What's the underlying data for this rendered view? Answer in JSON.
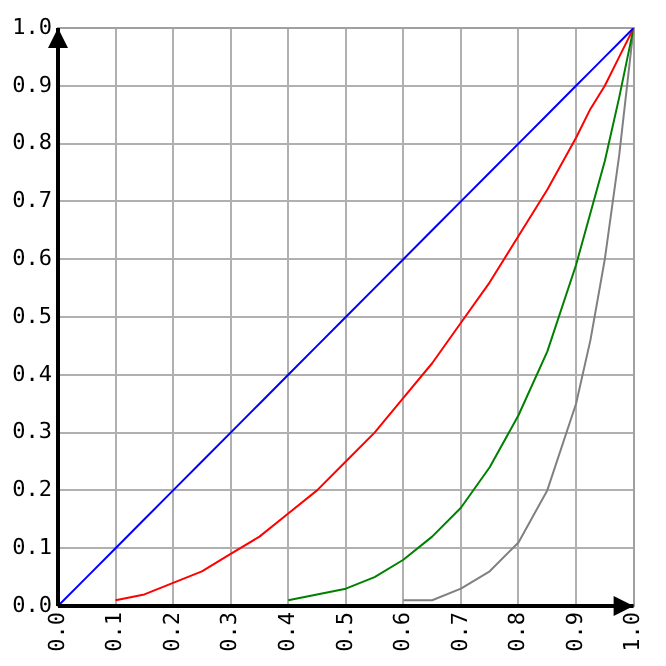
{
  "chart_data": {
    "type": "line",
    "x": [
      0,
      0.05,
      0.1,
      0.15,
      0.2,
      0.25,
      0.3,
      0.35,
      0.4,
      0.45,
      0.5,
      0.55,
      0.6,
      0.65,
      0.7,
      0.75,
      0.8,
      0.85,
      0.9,
      0.925,
      0.95,
      0.975,
      1
    ],
    "series": [
      {
        "color": "#0000ff",
        "values": [
          0,
          0.05,
          0.1,
          0.15,
          0.2,
          0.25,
          0.3,
          0.35,
          0.4,
          0.45,
          0.5,
          0.55,
          0.6,
          0.65,
          0.7,
          0.75,
          0.8,
          0.85,
          0.9,
          0.925,
          0.95,
          0.975,
          1
        ]
      },
      {
        "color": "#ff0000",
        "values": [
          null,
          null,
          0.01,
          0.02,
          0.04,
          0.06,
          0.09,
          0.12,
          0.16,
          0.2,
          0.25,
          0.3,
          0.36,
          0.42,
          0.49,
          0.56,
          0.64,
          0.72,
          0.81,
          0.86,
          0.9,
          0.95,
          1
        ]
      },
      {
        "color": "#008000",
        "values": [
          null,
          null,
          null,
          null,
          null,
          null,
          null,
          null,
          0.01,
          0.02,
          0.03,
          0.05,
          0.08,
          0.12,
          0.17,
          0.24,
          0.33,
          0.44,
          0.59,
          0.68,
          0.77,
          0.88,
          1
        ]
      },
      {
        "color": "#808080",
        "values": [
          null,
          null,
          null,
          null,
          null,
          null,
          null,
          null,
          null,
          null,
          null,
          null,
          0.01,
          0.01,
          0.03,
          0.06,
          0.11,
          0.2,
          0.35,
          0.46,
          0.6,
          0.78,
          1
        ]
      }
    ],
    "xlim": [
      0,
      1
    ],
    "ylim": [
      0,
      1
    ],
    "xticks": [
      {
        "value": 0,
        "label": "0.0"
      },
      {
        "value": 0.1,
        "label": "0.1"
      },
      {
        "value": 0.2,
        "label": "0.2"
      },
      {
        "value": 0.3,
        "label": "0.3"
      },
      {
        "value": 0.4,
        "label": "0.4"
      },
      {
        "value": 0.5,
        "label": "0.5"
      },
      {
        "value": 0.6,
        "label": "0.6"
      },
      {
        "value": 0.7,
        "label": "0.7"
      },
      {
        "value": 0.8,
        "label": "0.8"
      },
      {
        "value": 0.9,
        "label": "0.9"
      },
      {
        "value": 1,
        "label": "1.0"
      }
    ],
    "yticks": [
      {
        "value": 0,
        "label": "0.0"
      },
      {
        "value": 0.1,
        "label": "0.1"
      },
      {
        "value": 0.2,
        "label": "0.2"
      },
      {
        "value": 0.3,
        "label": "0.3"
      },
      {
        "value": 0.4,
        "label": "0.4"
      },
      {
        "value": 0.5,
        "label": "0.5"
      },
      {
        "value": 0.6,
        "label": "0.6"
      },
      {
        "value": 0.7,
        "label": "0.7"
      },
      {
        "value": 0.8,
        "label": "0.8"
      },
      {
        "value": 0.9,
        "label": "0.9"
      },
      {
        "value": 1,
        "label": "1.0"
      }
    ],
    "grid": true,
    "legend": false,
    "marker": "none",
    "line_style": "solid"
  }
}
